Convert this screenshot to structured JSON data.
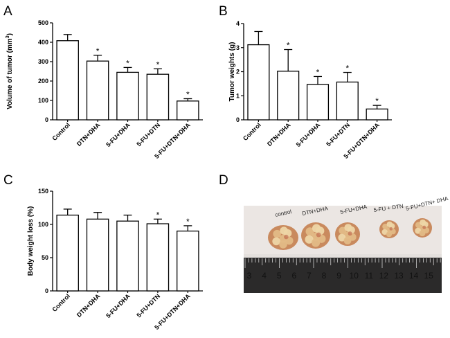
{
  "panels": {
    "a_letter": "A",
    "b_letter": "B",
    "c_letter": "C",
    "d_letter": "D"
  },
  "chart_data": [
    {
      "panel": "A",
      "type": "bar",
      "title": "",
      "ylabel": "Volume of tumor (mm",
      "ylabel_sup": "3",
      "ylabel_end": ")",
      "xlabel": "",
      "ylim": [
        0,
        500
      ],
      "yticks": [
        0,
        100,
        200,
        300,
        400,
        500
      ],
      "categories": [
        "Control",
        "DTN+DHA",
        "5-FU+DHA",
        "5-FU+DTN",
        "5-FU+DTN+DHA"
      ],
      "values": [
        408,
        303,
        245,
        235,
        97
      ],
      "errors": [
        32,
        30,
        25,
        28,
        12
      ],
      "significance": [
        "",
        "*",
        "*",
        "*",
        "*"
      ]
    },
    {
      "panel": "B",
      "type": "bar",
      "title": "",
      "ylabel": "Tumor weights (g)",
      "xlabel": "",
      "ylim": [
        0,
        4
      ],
      "yticks": [
        0,
        1,
        2,
        3,
        4
      ],
      "categories": [
        "Control",
        "DTN+DHA",
        "5-FU+DHA",
        "5-FU+DTN",
        "5-FU+DTN+DHA"
      ],
      "values": [
        3.12,
        2.02,
        1.47,
        1.57,
        0.45
      ],
      "errors": [
        0.55,
        0.9,
        0.33,
        0.4,
        0.15
      ],
      "significance": [
        "",
        "*",
        "*",
        "*",
        "*"
      ]
    },
    {
      "panel": "C",
      "type": "bar",
      "title": "",
      "ylabel": "Body weight loss (%)",
      "xlabel": "",
      "ylim": [
        0,
        150
      ],
      "yticks": [
        0,
        50,
        100,
        150
      ],
      "categories": [
        "Control",
        "DTN+DHA",
        "5-FU+DHA",
        "5-FU+DTN",
        "5-FU+DTN+DHA"
      ],
      "values": [
        114,
        108,
        105,
        101,
        90
      ],
      "errors": [
        9,
        10,
        9,
        7,
        8
      ],
      "significance": [
        "",
        "",
        "",
        "*",
        "*"
      ]
    }
  ],
  "photo": {
    "labels": [
      "control",
      "DTN+DHA",
      "5-FU+DHA",
      "5-FU + DTN",
      "5-FU+DTN+ DHA"
    ],
    "ruler_numbers": [
      "3",
      "4",
      "5",
      "6",
      "7",
      "8",
      "9",
      "10",
      "11",
      "12",
      "13",
      "14",
      "15"
    ]
  },
  "colors": {
    "bar_fill": "#ffffff",
    "ink": "#000000",
    "photo_bg": "#e4e0dd",
    "ruler_bg": "#2b2a2a",
    "tumor": "#d9a57a"
  }
}
